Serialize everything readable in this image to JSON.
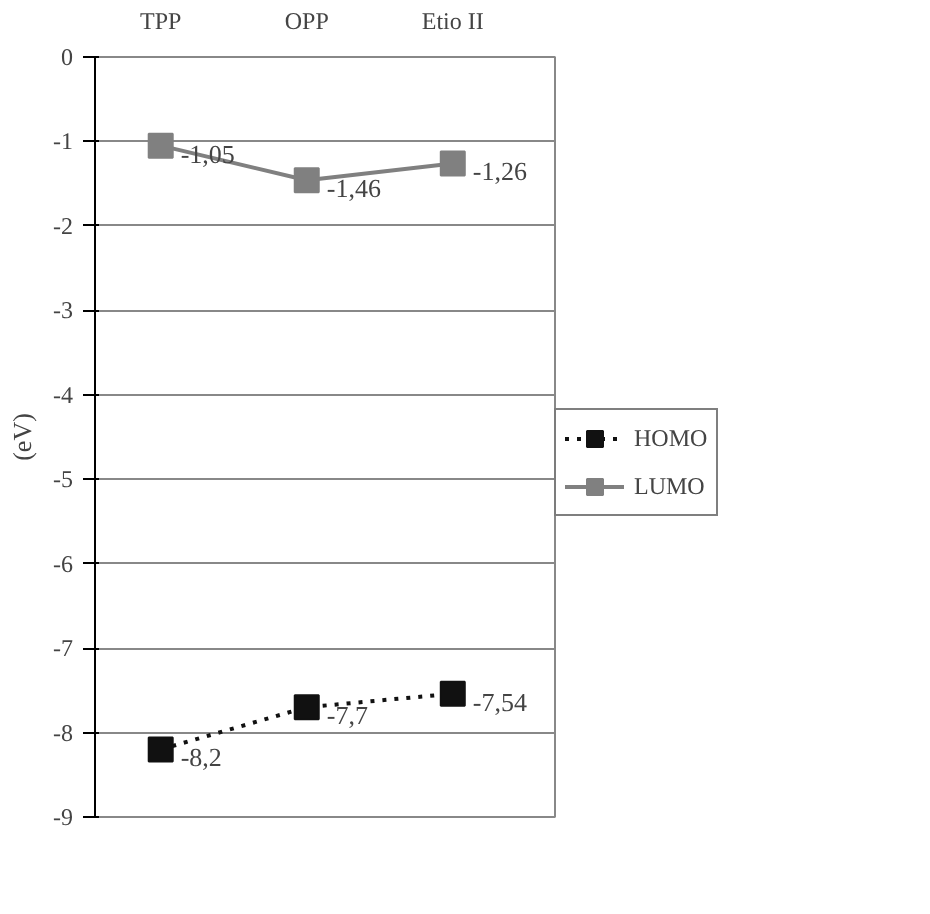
{
  "chart_data": {
    "type": "line",
    "ylabel": "(eV)",
    "categories": [
      "TPP",
      "OPP",
      "Etio II"
    ],
    "series": [
      {
        "name": "HOMO",
        "color": "#111111",
        "line_style": "dotted",
        "values": [
          -8.2,
          -7.7,
          -7.54
        ],
        "value_labels": [
          "-8,2",
          "-7,7",
          "-7,54"
        ]
      },
      {
        "name": "LUMO",
        "color": "#808080",
        "line_style": "solid",
        "values": [
          -1.05,
          -1.46,
          -1.26
        ],
        "value_labels": [
          "-1,05",
          "-1,46",
          "-1,26"
        ]
      }
    ],
    "ylim": [
      -9,
      0
    ],
    "yticks": [
      0,
      -1,
      -2,
      -3,
      -4,
      -5,
      -6,
      -7,
      -8,
      -9
    ],
    "grid": "y",
    "legend": "right",
    "marker": "square"
  }
}
